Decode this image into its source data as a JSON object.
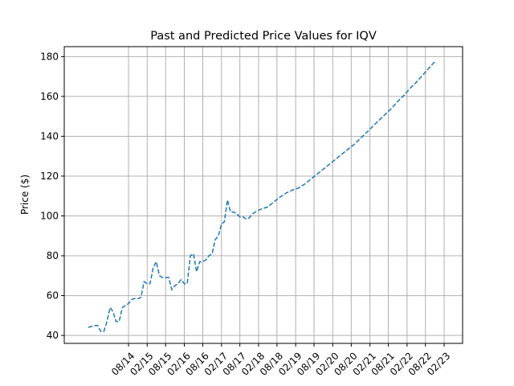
{
  "chart_data": {
    "type": "line",
    "title": "Past and Predicted Price Values for IQV",
    "xlabel": "",
    "ylabel": "Price ($)",
    "ylim": [
      36,
      185
    ],
    "grid": true,
    "legend": "none",
    "line_color": "#1f77b4",
    "line_style": "dashed",
    "x_ticks": [
      "08/14",
      "02/15",
      "08/15",
      "02/16",
      "08/16",
      "02/17",
      "08/17",
      "02/18",
      "08/18",
      "02/19",
      "08/19",
      "02/20",
      "08/20",
      "02/21",
      "08/21",
      "02/22",
      "08/22",
      "02/23"
    ],
    "y_ticks": [
      40,
      60,
      80,
      100,
      120,
      140,
      160,
      180
    ],
    "series": [
      {
        "values": [
          [
            "2013-07-01",
            44
          ],
          [
            "2013-08-01",
            44.5
          ],
          [
            "2013-09-01",
            45
          ],
          [
            "2013-10-01",
            45
          ],
          [
            "2013-11-01",
            42
          ],
          [
            "2013-12-01",
            42
          ],
          [
            "2014-01-01",
            47
          ],
          [
            "2014-02-01",
            54
          ],
          [
            "2014-03-01",
            52
          ],
          [
            "2014-04-01",
            47
          ],
          [
            "2014-05-01",
            47
          ],
          [
            "2014-06-01",
            54
          ],
          [
            "2014-07-01",
            55
          ],
          [
            "2014-08-01",
            56
          ],
          [
            "2014-09-01",
            58
          ],
          [
            "2014-10-01",
            58.5
          ],
          [
            "2014-11-01",
            58.5
          ],
          [
            "2014-12-01",
            59
          ],
          [
            "2015-01-01",
            67
          ],
          [
            "2015-02-01",
            66
          ],
          [
            "2015-03-01",
            66
          ],
          [
            "2015-04-01",
            74
          ],
          [
            "2015-05-01",
            77
          ],
          [
            "2015-06-01",
            70
          ],
          [
            "2015-07-01",
            69
          ],
          [
            "2015-08-01",
            69
          ],
          [
            "2015-09-01",
            69
          ],
          [
            "2015-10-01",
            63
          ],
          [
            "2015-11-01",
            65
          ],
          [
            "2015-12-01",
            66
          ],
          [
            "2016-01-01",
            68
          ],
          [
            "2016-02-01",
            66
          ],
          [
            "2016-03-01",
            66
          ],
          [
            "2016-04-01",
            80
          ],
          [
            "2016-05-01",
            81
          ],
          [
            "2016-06-01",
            72
          ],
          [
            "2016-07-01",
            77
          ],
          [
            "2016-08-01",
            77
          ],
          [
            "2016-09-01",
            78
          ],
          [
            "2016-10-01",
            80
          ],
          [
            "2016-11-01",
            81
          ],
          [
            "2016-12-01",
            88
          ],
          [
            "2017-01-01",
            90
          ],
          [
            "2017-02-01",
            96
          ],
          [
            "2017-03-01",
            97
          ],
          [
            "2017-04-01",
            108
          ],
          [
            "2017-05-01",
            102
          ],
          [
            "2017-06-01",
            102
          ],
          [
            "2017-07-01",
            101
          ],
          [
            "2017-08-01",
            99.5
          ],
          [
            "2017-09-01",
            99.5
          ],
          [
            "2017-10-01",
            98.5
          ],
          [
            "2017-11-01",
            99
          ],
          [
            "2017-12-01",
            101
          ],
          [
            "2018-01-01",
            102
          ],
          [
            "2018-03-01",
            103.5
          ],
          [
            "2018-05-01",
            104.5
          ],
          [
            "2018-07-01",
            107
          ],
          [
            "2018-09-01",
            109.5
          ],
          [
            "2018-11-01",
            111.5
          ],
          [
            "2019-01-01",
            113
          ],
          [
            "2019-03-01",
            114
          ],
          [
            "2019-05-01",
            116
          ],
          [
            "2019-07-01",
            118.5
          ],
          [
            "2019-09-01",
            121
          ],
          [
            "2019-11-01",
            123.5
          ],
          [
            "2020-01-01",
            126
          ],
          [
            "2020-03-01",
            128.5
          ],
          [
            "2020-05-01",
            131
          ],
          [
            "2020-07-01",
            133.5
          ],
          [
            "2020-09-01",
            136
          ],
          [
            "2020-11-01",
            139
          ],
          [
            "2021-01-01",
            142
          ],
          [
            "2021-03-01",
            145
          ],
          [
            "2021-05-01",
            148
          ],
          [
            "2021-07-01",
            151
          ],
          [
            "2021-09-01",
            154
          ],
          [
            "2021-11-01",
            157.5
          ],
          [
            "2022-01-01",
            160.5
          ],
          [
            "2022-03-01",
            164
          ],
          [
            "2022-05-01",
            167
          ],
          [
            "2022-07-01",
            170.5
          ],
          [
            "2022-09-01",
            174
          ],
          [
            "2022-11-01",
            177.5
          ]
        ]
      }
    ]
  }
}
